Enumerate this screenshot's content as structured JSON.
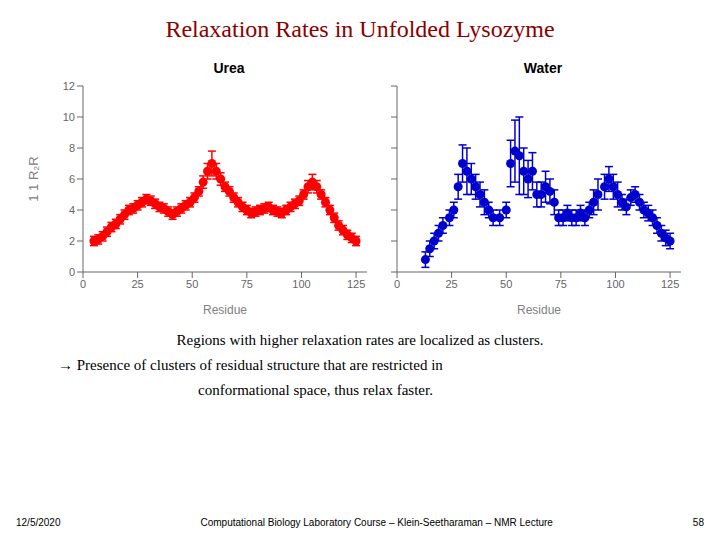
{
  "title": "Relaxation Rates in Unfolded Lysozyme",
  "title_color": "#8B0000",
  "annotations": [
    "Regions with higher relaxation rates are localized as clusters.",
    "→  Presence of clusters of residual structure that are restricted in",
    "conformational space, thus relax faster."
  ],
  "footer": [
    "12/5/2020",
    "Computational Biology Laboratory Course – Klein-Seetharaman – NMR Lecture",
    "58"
  ],
  "chart_data": [
    {
      "type": "scatter",
      "title": "Urea",
      "xlabel": "Residue",
      "ylabel": "1  1  R₂R",
      "xlim": [
        0,
        130
      ],
      "ylim": [
        0,
        12
      ],
      "xticks": [
        0,
        25,
        50,
        75,
        100,
        125
      ],
      "yticks": [
        0,
        2,
        4,
        6,
        8,
        10,
        12
      ],
      "grid": false,
      "marker": "circle",
      "color": "#FF0000",
      "x": [
        5,
        7,
        9,
        11,
        13,
        15,
        17,
        19,
        21,
        23,
        25,
        27,
        29,
        31,
        33,
        35,
        37,
        39,
        41,
        43,
        45,
        47,
        49,
        51,
        53,
        55,
        57,
        59,
        61,
        63,
        65,
        67,
        69,
        71,
        73,
        75,
        77,
        79,
        81,
        83,
        85,
        87,
        89,
        91,
        93,
        95,
        97,
        99,
        101,
        103,
        105,
        107,
        109,
        111,
        113,
        115,
        117,
        119,
        121,
        123,
        125
      ],
      "values": [
        2.0,
        2.1,
        2.3,
        2.6,
        2.9,
        3.1,
        3.4,
        3.7,
        4.0,
        4.1,
        4.3,
        4.5,
        4.7,
        4.6,
        4.4,
        4.2,
        4.1,
        3.9,
        3.7,
        3.9,
        4.1,
        4.3,
        4.5,
        4.8,
        5.2,
        5.8,
        6.5,
        7.0,
        6.5,
        6.0,
        5.5,
        5.2,
        4.8,
        4.5,
        4.2,
        4.0,
        3.8,
        3.9,
        4.0,
        4.1,
        4.2,
        4.0,
        3.9,
        3.8,
        4.0,
        4.2,
        4.4,
        4.6,
        5.0,
        5.5,
        5.8,
        5.5,
        5.0,
        4.5,
        4.0,
        3.5,
        3.0,
        2.7,
        2.4,
        2.2,
        2.0
      ],
      "errors": [
        0.3,
        0.3,
        0.3,
        0.3,
        0.3,
        0.3,
        0.3,
        0.3,
        0.3,
        0.3,
        0.3,
        0.3,
        0.3,
        0.3,
        0.3,
        0.3,
        0.3,
        0.3,
        0.3,
        0.3,
        0.3,
        0.3,
        0.3,
        0.3,
        0.3,
        0.4,
        0.5,
        0.8,
        0.5,
        0.4,
        0.3,
        0.3,
        0.3,
        0.3,
        0.3,
        0.3,
        0.3,
        0.3,
        0.3,
        0.3,
        0.3,
        0.3,
        0.3,
        0.3,
        0.3,
        0.3,
        0.3,
        0.3,
        0.3,
        0.4,
        0.5,
        0.4,
        0.3,
        0.3,
        0.3,
        0.3,
        0.3,
        0.3,
        0.3,
        0.3,
        0.3
      ]
    },
    {
      "type": "scatter",
      "title": "Water",
      "xlabel": "Residue",
      "xlim": [
        0,
        130
      ],
      "ylim": [
        0,
        12
      ],
      "xticks": [
        0,
        25,
        50,
        75,
        100,
        125
      ],
      "yticks": [
        0,
        2,
        4,
        6,
        8,
        10,
        12
      ],
      "grid": false,
      "tick_labels": "x",
      "marker": "circle",
      "color": "#0000CC",
      "x": [
        13,
        15,
        17,
        19,
        21,
        24,
        26,
        28,
        30,
        32,
        34,
        36,
        38,
        40,
        42,
        44,
        47,
        50,
        52,
        54,
        56,
        58,
        60,
        62,
        64,
        66,
        68,
        70,
        72,
        74,
        76,
        78,
        80,
        82,
        84,
        86,
        88,
        90,
        92,
        95,
        97,
        99,
        101,
        103,
        105,
        107,
        109,
        111,
        113,
        115,
        117,
        119,
        121,
        123,
        125
      ],
      "values": [
        0.8,
        1.5,
        2.0,
        2.5,
        3.0,
        3.5,
        4.0,
        5.5,
        7.0,
        6.5,
        6.0,
        5.5,
        5.0,
        4.5,
        4.0,
        3.5,
        3.5,
        4.0,
        7.0,
        7.8,
        7.5,
        6.5,
        6.0,
        6.5,
        5.0,
        5.0,
        5.5,
        5.2,
        4.5,
        3.5,
        3.5,
        3.8,
        3.5,
        3.5,
        3.8,
        3.5,
        4.0,
        4.5,
        5.0,
        5.5,
        6.0,
        5.5,
        5.0,
        4.5,
        4.2,
        4.8,
        5.0,
        4.5,
        4.0,
        3.8,
        3.5,
        3.0,
        2.5,
        2.2,
        2.0
      ],
      "errors": [
        0.5,
        0.5,
        0.5,
        0.5,
        0.5,
        0.5,
        0.5,
        0.8,
        1.2,
        1.5,
        1.0,
        0.8,
        0.8,
        0.8,
        0.5,
        0.5,
        0.5,
        0.5,
        1.5,
        2.0,
        2.5,
        1.5,
        1.2,
        1.2,
        0.8,
        0.8,
        1.0,
        0.8,
        0.8,
        0.5,
        0.5,
        0.5,
        0.5,
        0.5,
        0.5,
        0.5,
        0.5,
        0.8,
        1.0,
        0.8,
        0.8,
        0.8,
        0.8,
        0.5,
        0.5,
        0.5,
        0.5,
        0.5,
        0.5,
        0.5,
        0.5,
        0.5,
        0.5,
        0.5,
        0.5
      ]
    }
  ]
}
